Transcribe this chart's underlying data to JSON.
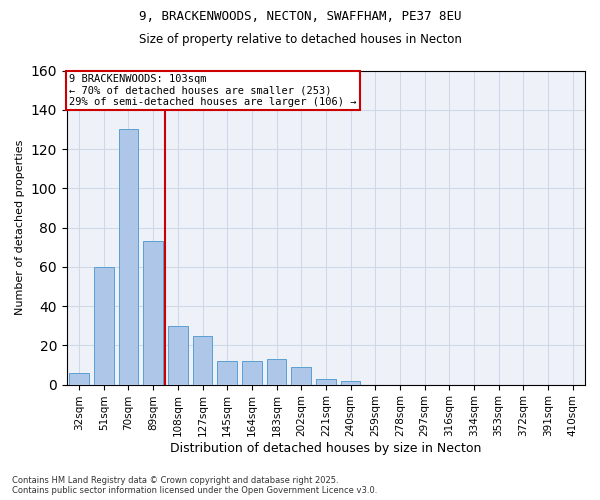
{
  "title1": "9, BRACKENWOODS, NECTON, SWAFFHAM, PE37 8EU",
  "title2": "Size of property relative to detached houses in Necton",
  "xlabel": "Distribution of detached houses by size in Necton",
  "ylabel": "Number of detached properties",
  "categories": [
    "32sqm",
    "51sqm",
    "70sqm",
    "89sqm",
    "108sqm",
    "127sqm",
    "145sqm",
    "164sqm",
    "183sqm",
    "202sqm",
    "221sqm",
    "240sqm",
    "259sqm",
    "278sqm",
    "297sqm",
    "316sqm",
    "334sqm",
    "353sqm",
    "372sqm",
    "391sqm",
    "410sqm"
  ],
  "values": [
    6,
    60,
    130,
    73,
    30,
    25,
    12,
    12,
    13,
    9,
    3,
    2,
    0,
    0,
    0,
    0,
    0,
    0,
    0,
    0,
    0
  ],
  "bar_color": "#aec6e8",
  "bar_edge_color": "#5a9fd4",
  "vline_color": "#cc0000",
  "annotation_text": "9 BRACKENWOODS: 103sqm\n← 70% of detached houses are smaller (253)\n29% of semi-detached houses are larger (106) →",
  "annotation_box_color": "#cc0000",
  "ylim": [
    0,
    160
  ],
  "yticks": [
    0,
    20,
    40,
    60,
    80,
    100,
    120,
    140,
    160
  ],
  "grid_color": "#d0d8e8",
  "background_color": "#eef2f8",
  "footer1": "Contains HM Land Registry data © Crown copyright and database right 2025.",
  "footer2": "Contains public sector information licensed under the Open Government Licence v3.0."
}
